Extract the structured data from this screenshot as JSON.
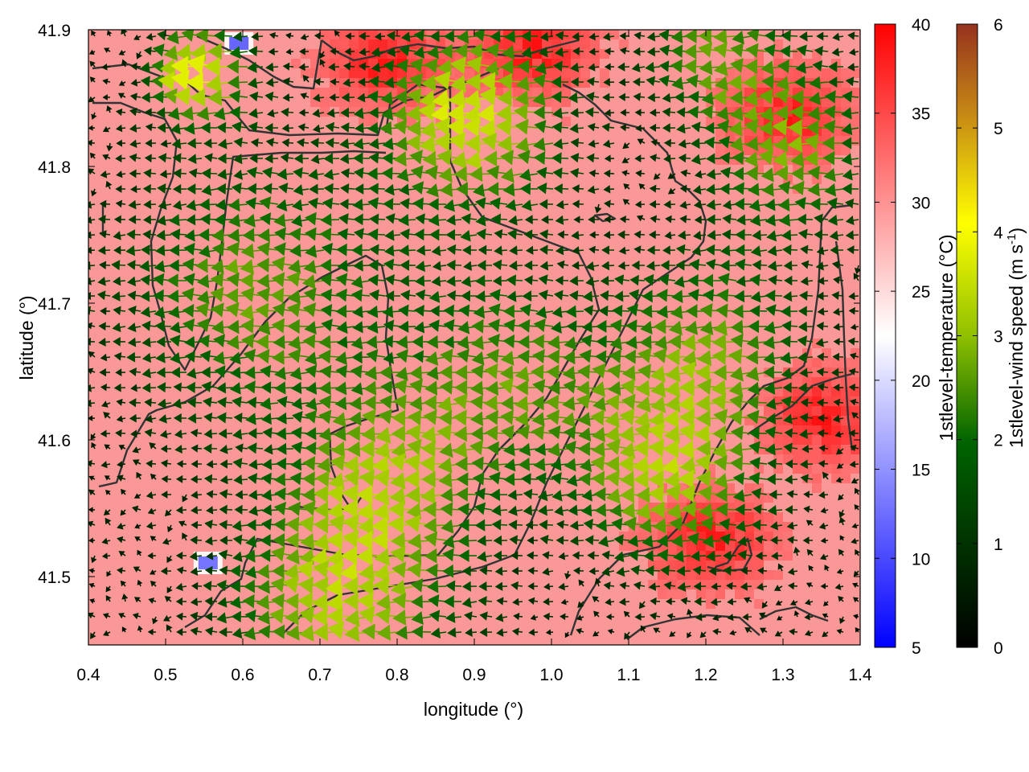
{
  "chart_data": {
    "type": "heatmap",
    "title": "",
    "xlabel": "longitude (°)",
    "ylabel": "latitude (°)",
    "xlim": [
      0.4,
      1.4
    ],
    "ylim": [
      41.45,
      41.9
    ],
    "x_ticks": [
      "0.4",
      "0.5",
      "0.6",
      "0.7",
      "0.8",
      "0.9",
      "1.0",
      "1.1",
      "1.2",
      "1.3",
      "1.4"
    ],
    "y_ticks": [
      "41.5",
      "41.6",
      "41.7",
      "41.8",
      "41.9"
    ],
    "grid": false,
    "overlay": "wind vectors (arrows) colored by 1stlevel-wind speed, with black coastline/boundary contours",
    "colorbars": [
      {
        "label": "1stlevel-temperature (°C)",
        "range": [
          5,
          40
        ],
        "ticks": [
          "5",
          "10",
          "15",
          "20",
          "25",
          "30",
          "35",
          "40"
        ],
        "colors": [
          "#0000ff",
          "#ffffff",
          "#ff0000"
        ]
      },
      {
        "label": "1stlevel-wind speed (m s-1)",
        "range": [
          0,
          6
        ],
        "ticks": [
          "0",
          "1",
          "2",
          "3",
          "4",
          "5",
          "6"
        ],
        "colors": [
          "#000000",
          "#006400",
          "#a0c800",
          "#ffff00",
          "#c88c14",
          "#96321e"
        ]
      }
    ],
    "approx_field": {
      "temperature_typical": 31,
      "temperature_range_shown": [
        12,
        39
      ],
      "cold_spots": [
        {
          "lon": 0.595,
          "lat": 41.89,
          "temperature": 12
        },
        {
          "lon": 0.555,
          "lat": 41.51,
          "temperature": 13
        }
      ],
      "hot_regions": [
        {
          "lon": 0.78,
          "lat": 41.88
        },
        {
          "lon": 0.97,
          "lat": 41.89
        },
        {
          "lon": 1.3,
          "lat": 41.84
        },
        {
          "lon": 1.2,
          "lat": 41.53
        },
        {
          "lon": 1.35,
          "lat": 41.62
        }
      ],
      "wind_speed_range_shown": [
        0,
        3.8
      ],
      "prevailing_wind_direction": "from east (arrows pointing west)"
    }
  }
}
